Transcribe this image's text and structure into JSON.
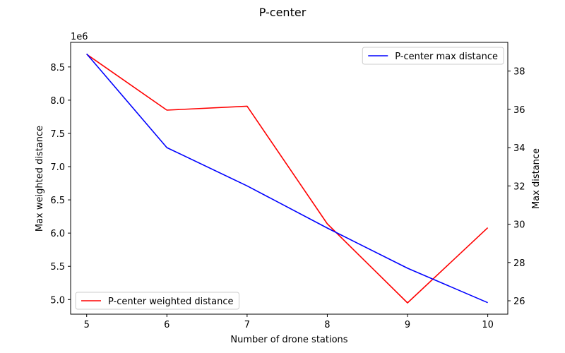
{
  "chart_data": {
    "type": "line",
    "title": "P-center",
    "xlabel": "Number of drone stations",
    "ylabel_left": "Max weighted distance",
    "ylabel_right": "Max distance",
    "left_axis_offset_label": "1e6",
    "x": [
      5,
      6,
      7,
      8,
      9,
      10
    ],
    "xlim": [
      4.8,
      10.25
    ],
    "xticks": [
      5,
      6,
      7,
      8,
      9,
      10
    ],
    "ylim_left": [
      4.78,
      8.87
    ],
    "yticks_left": [
      5.0,
      5.5,
      6.0,
      6.5,
      7.0,
      7.5,
      8.0,
      8.5
    ],
    "ylim_right": [
      25.3,
      39.5
    ],
    "yticks_right": [
      26,
      28,
      30,
      32,
      34,
      36,
      38
    ],
    "grid": false,
    "series": [
      {
        "name": "P-center weighted distance",
        "axis": "left",
        "color": "#ff0000",
        "values": [
          8.69,
          7.85,
          7.91,
          6.14,
          4.95,
          6.08
        ],
        "legend_position": "lower-left"
      },
      {
        "name": "P-center max distance",
        "axis": "right",
        "color": "#0000ff",
        "values": [
          38.9,
          34.0,
          32.0,
          29.8,
          27.7,
          25.9
        ],
        "legend_position": "upper-right"
      }
    ]
  }
}
